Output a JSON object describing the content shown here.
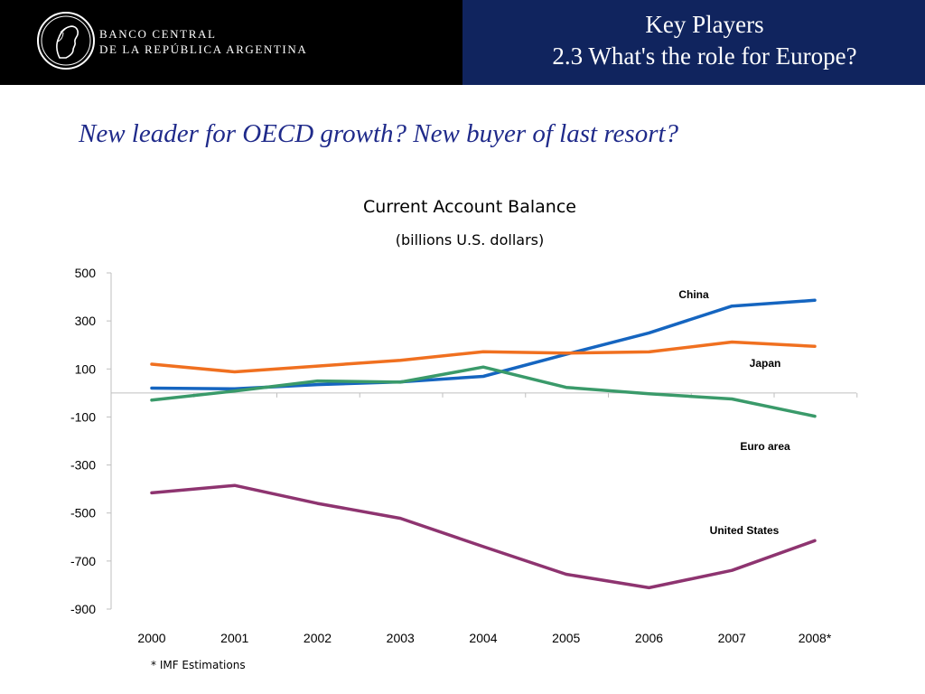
{
  "header": {
    "bank_line1": "BANCO CENTRAL",
    "bank_line2": "DE LA REPÚBLICA ARGENTINA",
    "title_line1": "Key Players",
    "title_line2": "2.3 What's the role for Europe?"
  },
  "slide": {
    "subtitle": "New leader for OECD growth? New buyer of last resort?",
    "footnote": "* IMF Estimations"
  },
  "colors": {
    "header_left": "#000000",
    "header_right": "#10245e",
    "subtitle": "#1f2a8a",
    "China": "#1565c0",
    "Japan": "#f07020",
    "Euro area": "#3a9a6a",
    "United States": "#8e3470"
  },
  "chart_data": {
    "type": "line",
    "title": "Current Account Balance",
    "subtitle": "(billions U.S. dollars)",
    "x": [
      "2000",
      "2001",
      "2002",
      "2003",
      "2004",
      "2005",
      "2006",
      "2007",
      "2008*"
    ],
    "ylim": [
      -900,
      500
    ],
    "yticks": [
      500,
      300,
      100,
      -100,
      -300,
      -500,
      -700,
      -900
    ],
    "grid": false,
    "series": [
      {
        "name": "China",
        "values": [
          20,
          17,
          35,
          46,
          69,
          161,
          250,
          362,
          386
        ]
      },
      {
        "name": "Japan",
        "values": [
          120,
          88,
          112,
          136,
          172,
          166,
          171,
          212,
          194
        ]
      },
      {
        "name": "Euro area",
        "values": [
          -30,
          8,
          50,
          45,
          108,
          23,
          -3,
          -25,
          -97
        ]
      },
      {
        "name": "United States",
        "values": [
          -416,
          -385,
          -460,
          -522,
          -640,
          -755,
          -811,
          -739,
          -615
        ]
      }
    ]
  }
}
